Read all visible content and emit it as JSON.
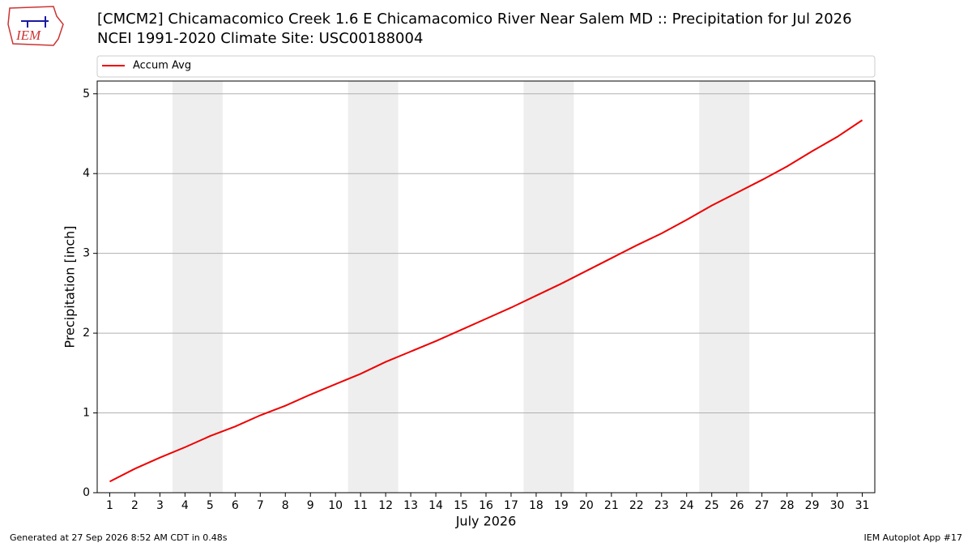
{
  "logo_text": "IEM",
  "footer_left": "Generated at 27 Sep 2026 8:52 AM CDT in 0.48s",
  "footer_right": "IEM Autoplot App #17",
  "chart_data": {
    "type": "line",
    "title": "[CMCM2] Chicamacomico Creek 1.6 E Chicamacomico River Near Salem MD :: Precipitation for Jul 2026",
    "subtitle": "NCEI 1991-2020 Climate Site: USC00188004",
    "x_label": "July 2026",
    "y_label": "Precipitation [inch]",
    "x": [
      1,
      2,
      3,
      4,
      5,
      6,
      7,
      8,
      9,
      10,
      11,
      12,
      13,
      14,
      15,
      16,
      17,
      18,
      19,
      20,
      21,
      22,
      23,
      24,
      25,
      26,
      27,
      28,
      29,
      30,
      31
    ],
    "series": [
      {
        "name": "Accum Avg",
        "color": "#ee0000",
        "values": [
          0.14,
          0.3,
          0.44,
          0.57,
          0.71,
          0.83,
          0.97,
          1.09,
          1.23,
          1.36,
          1.49,
          1.64,
          1.77,
          1.9,
          2.04,
          2.18,
          2.32,
          2.47,
          2.62,
          2.78,
          2.94,
          3.1,
          3.25,
          3.42,
          3.6,
          3.76,
          3.92,
          4.09,
          4.28,
          4.46,
          4.67
        ]
      }
    ],
    "xlim": [
      0.5,
      31.5
    ],
    "ylim": [
      0,
      5.16
    ],
    "xticks": [
      1,
      2,
      3,
      4,
      5,
      6,
      7,
      8,
      9,
      10,
      11,
      12,
      13,
      14,
      15,
      16,
      17,
      18,
      19,
      20,
      21,
      22,
      23,
      24,
      25,
      26,
      27,
      28,
      29,
      30,
      31
    ],
    "yticks": [
      0,
      1,
      2,
      3,
      4,
      5
    ],
    "grid": true,
    "weekend_spans": [
      [
        3.5,
        5.5
      ],
      [
        10.5,
        12.5
      ],
      [
        17.5,
        19.5
      ],
      [
        24.5,
        26.5
      ]
    ],
    "weekend_color": "#eeeeee"
  }
}
